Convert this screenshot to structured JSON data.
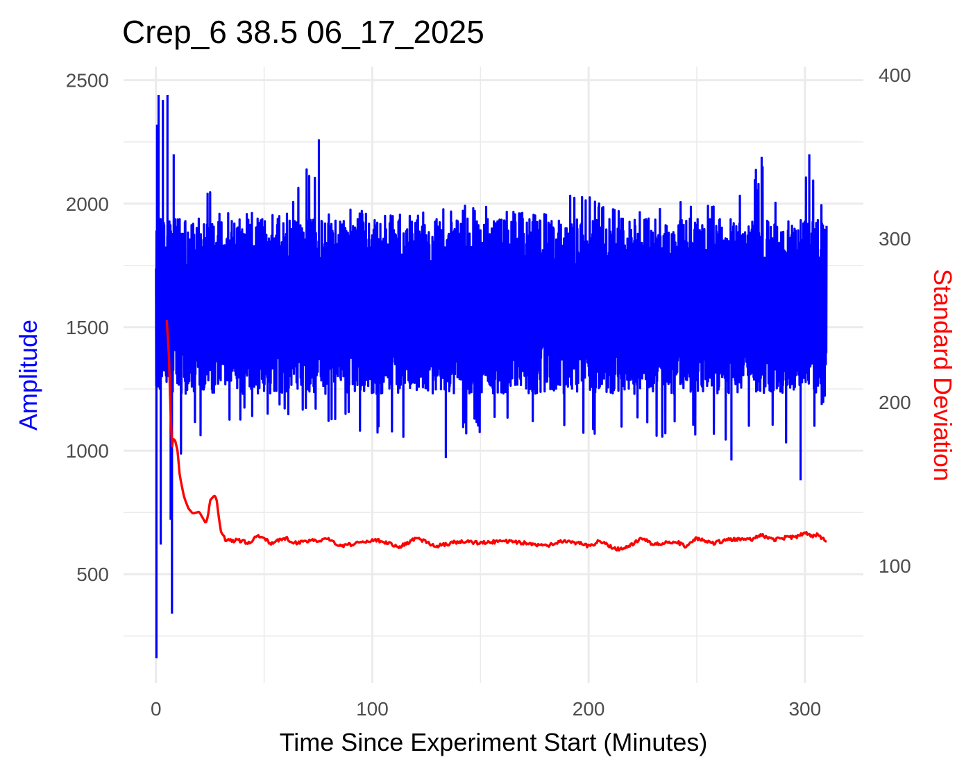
{
  "chart_data": {
    "type": "line",
    "title": "Crep_6 38.5 06_17_2025",
    "xlabel": "Time Since Experiment Start (Minutes)",
    "ylabel": "Amplitude",
    "y2label": "Standard Deviation",
    "xlim": [
      -15,
      327
    ],
    "ylim": [
      60,
      2555
    ],
    "y2lim": [
      28.5,
      405
    ],
    "x_ticks": [
      "0",
      "100",
      "200",
      "300"
    ],
    "y_ticks": [
      "500",
      "1000",
      "1500",
      "2000",
      "2500"
    ],
    "y2_ticks": [
      "100",
      "200",
      "300",
      "400"
    ],
    "grid": true,
    "series": [
      {
        "axis": "left",
        "color": "#0000ff",
        "style": "dense oscillating signal",
        "x_range": [
          0,
          310
        ],
        "baseline_band": [
          1230,
          1940
        ],
        "envelope_top": [
          [
            0,
            2320
          ],
          [
            1,
            2440
          ],
          [
            3,
            2400
          ],
          [
            5,
            2440
          ],
          [
            6,
            2330
          ],
          [
            10,
            2100
          ],
          [
            15,
            2080
          ],
          [
            20,
            2020
          ],
          [
            25,
            2050
          ],
          [
            30,
            1960
          ],
          [
            45,
            1970
          ],
          [
            60,
            1950
          ],
          [
            75,
            2260
          ],
          [
            80,
            1950
          ],
          [
            90,
            2000
          ],
          [
            100,
            1950
          ],
          [
            120,
            1960
          ],
          [
            147,
            2000
          ],
          [
            160,
            1970
          ],
          [
            180,
            1960
          ],
          [
            195,
            2060
          ],
          [
            210,
            1990
          ],
          [
            230,
            1960
          ],
          [
            240,
            2030
          ],
          [
            265,
            2030
          ],
          [
            280,
            2190
          ],
          [
            290,
            1970
          ],
          [
            302,
            2200
          ],
          [
            310,
            1920
          ]
        ],
        "envelope_bottom": [
          [
            0,
            160
          ],
          [
            1,
            470
          ],
          [
            2,
            620
          ],
          [
            4,
            900
          ],
          [
            6,
            720
          ],
          [
            7,
            340
          ],
          [
            9,
            870
          ],
          [
            12,
            1000
          ],
          [
            18,
            1030
          ],
          [
            25,
            1070
          ],
          [
            40,
            1130
          ],
          [
            60,
            1150
          ],
          [
            80,
            1110
          ],
          [
            100,
            1060
          ],
          [
            134,
            970
          ],
          [
            160,
            1110
          ],
          [
            193,
            1040
          ],
          [
            220,
            1090
          ],
          [
            266,
            960
          ],
          [
            280,
            1070
          ],
          [
            298,
            880
          ],
          [
            306,
            1080
          ],
          [
            310,
            1260
          ]
        ]
      },
      {
        "axis": "right",
        "color": "#ff0000",
        "style": "rolling standard deviation",
        "points": [
          [
            5,
            250
          ],
          [
            6,
            228
          ],
          [
            6.5,
            205
          ],
          [
            7,
            185
          ],
          [
            7.5,
            172
          ],
          [
            8,
            178
          ],
          [
            9,
            176
          ],
          [
            10,
            170
          ],
          [
            11,
            155
          ],
          [
            13,
            142
          ],
          [
            15,
            135
          ],
          [
            17,
            132
          ],
          [
            20,
            133
          ],
          [
            23,
            126
          ],
          [
            24,
            130
          ],
          [
            25,
            140
          ],
          [
            27,
            143
          ],
          [
            28,
            141
          ],
          [
            29,
            130
          ],
          [
            30,
            121
          ],
          [
            32,
            116
          ],
          [
            40,
            115
          ],
          [
            44,
            114
          ],
          [
            46,
            118
          ],
          [
            50,
            117
          ],
          [
            53,
            114
          ],
          [
            60,
            117
          ],
          [
            63,
            114
          ],
          [
            70,
            115
          ],
          [
            80,
            116
          ],
          [
            85,
            112
          ],
          [
            90,
            113
          ],
          [
            100,
            116
          ],
          [
            108,
            114
          ],
          [
            112,
            111
          ],
          [
            120,
            117
          ],
          [
            130,
            112
          ],
          [
            140,
            115
          ],
          [
            150,
            114
          ],
          [
            160,
            115
          ],
          [
            170,
            114
          ],
          [
            180,
            112
          ],
          [
            188,
            115
          ],
          [
            195,
            114
          ],
          [
            200,
            112
          ],
          [
            205,
            115
          ],
          [
            213,
            110
          ],
          [
            220,
            113
          ],
          [
            225,
            117
          ],
          [
            230,
            113
          ],
          [
            240,
            115
          ],
          [
            245,
            112
          ],
          [
            250,
            117
          ],
          [
            258,
            114
          ],
          [
            265,
            116
          ],
          [
            275,
            116
          ],
          [
            280,
            119
          ],
          [
            285,
            116
          ],
          [
            290,
            117
          ],
          [
            297,
            118
          ],
          [
            300,
            121
          ],
          [
            303,
            118
          ],
          [
            306,
            119
          ],
          [
            308,
            117
          ],
          [
            310,
            114
          ]
        ]
      }
    ]
  }
}
